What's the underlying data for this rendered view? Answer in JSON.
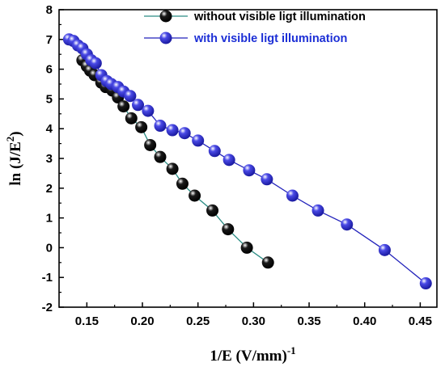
{
  "chart_data": {
    "type": "line",
    "xlabel_main": "1/E (V/mm)",
    "xlabel_sup": "-1",
    "ylabel_main": "ln (J/E",
    "ylabel_sup": "2",
    "ylabel_end": ")",
    "xlim": [
      0.125,
      0.465
    ],
    "ylim": [
      -2,
      8
    ],
    "x_ticks": [
      0.15,
      0.2,
      0.25,
      0.3,
      0.35,
      0.4,
      0.45
    ],
    "x_tick_labels": [
      "0.15",
      "0.20",
      "0.25",
      "0.30",
      "0.35",
      "0.40",
      "0.45"
    ],
    "y_ticks": [
      -2,
      -1,
      0,
      1,
      2,
      3,
      4,
      5,
      6,
      7,
      8
    ],
    "y_tick_labels": [
      "-2",
      "-1",
      "0",
      "1",
      "2",
      "3",
      "4",
      "5",
      "6",
      "7",
      "8"
    ],
    "grid": false,
    "legend_position": "top-right",
    "series": [
      {
        "name": "without visible ligt illumination",
        "line_color": "#2a8c84",
        "marker_color": "#1a1a1a",
        "legend_color": "#000000",
        "points": [
          [
            0.146,
            6.3
          ],
          [
            0.15,
            6.1
          ],
          [
            0.153,
            5.95
          ],
          [
            0.157,
            5.8
          ],
          [
            0.163,
            5.55
          ],
          [
            0.167,
            5.4
          ],
          [
            0.173,
            5.28
          ],
          [
            0.178,
            5.05
          ],
          [
            0.183,
            4.75
          ],
          [
            0.19,
            4.35
          ],
          [
            0.199,
            4.05
          ],
          [
            0.207,
            3.45
          ],
          [
            0.216,
            3.05
          ],
          [
            0.227,
            2.65
          ],
          [
            0.236,
            2.15
          ],
          [
            0.247,
            1.75
          ],
          [
            0.263,
            1.25
          ],
          [
            0.277,
            0.62
          ],
          [
            0.294,
            0.0
          ],
          [
            0.313,
            -0.5
          ]
        ]
      },
      {
        "name": "with visible ligt illumination",
        "line_color": "#2222bb",
        "marker_color": "#4a4ae6",
        "legend_color": "#1c2fd6",
        "points": [
          [
            0.134,
            7.0
          ],
          [
            0.138,
            6.95
          ],
          [
            0.142,
            6.8
          ],
          [
            0.146,
            6.7
          ],
          [
            0.15,
            6.5
          ],
          [
            0.154,
            6.3
          ],
          [
            0.158,
            6.2
          ],
          [
            0.163,
            5.8
          ],
          [
            0.168,
            5.6
          ],
          [
            0.172,
            5.5
          ],
          [
            0.178,
            5.4
          ],
          [
            0.183,
            5.25
          ],
          [
            0.189,
            5.1
          ],
          [
            0.196,
            4.8
          ],
          [
            0.205,
            4.6
          ],
          [
            0.216,
            4.1
          ],
          [
            0.227,
            3.95
          ],
          [
            0.238,
            3.85
          ],
          [
            0.25,
            3.6
          ],
          [
            0.265,
            3.25
          ],
          [
            0.278,
            2.95
          ],
          [
            0.296,
            2.6
          ],
          [
            0.312,
            2.3
          ],
          [
            0.335,
            1.75
          ],
          [
            0.358,
            1.25
          ],
          [
            0.384,
            0.78
          ],
          [
            0.418,
            -0.08
          ],
          [
            0.455,
            -1.2
          ]
        ]
      }
    ]
  }
}
